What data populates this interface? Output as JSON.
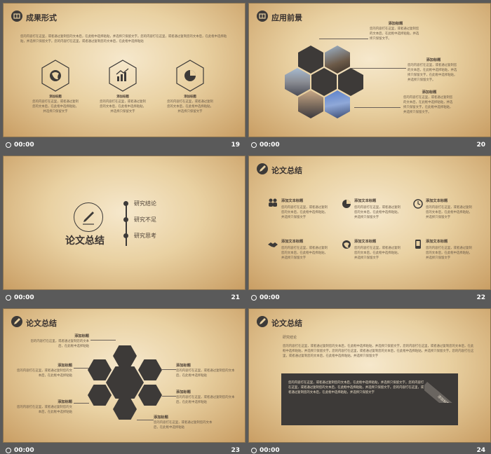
{
  "footer_time": "00:00",
  "slides": [
    {
      "number": "19",
      "title": "成果形式",
      "intro": "您的内容打在这里，或者通过复制您的文本后，在此框中选择粘贴，并选择只保留文字。您的内容打在这里，或者通过复制您的文本后，在此框中选择粘贴，并选择只保留文字。您的内容打在这里，或者通过复制您的文本后，在此框中选择粘贴",
      "items": [
        {
          "icon": "globe-icon",
          "label": "添加标题",
          "text": "您的内容打在这里，或者通过复制您的文本后，在此框中选择粘贴，并选择只保留文字"
        },
        {
          "icon": "bar-chart-icon",
          "label": "添加标题",
          "text": "您的内容打在这里，或者通过复制您的文本后，在此框中选择粘贴，并选择只保留文字"
        },
        {
          "icon": "pie-chart-icon",
          "label": "添加标题",
          "text": "您的内容打在这里，或者通过复制您的文本后，在此框中选择粘贴，并选择只保留文字"
        }
      ]
    },
    {
      "number": "20",
      "title": "应用前景",
      "callouts": [
        {
          "label": "添加标题",
          "text": "您的内容打在这里，或者通过复制您的文本后，在此框中选择粘贴，并选择只保留文字。"
        },
        {
          "label": "添加标题",
          "text": "您的内容打在这里，或者通过复制您的文本后，在此框中选择粘贴，并选择只保留文字，在此框中选择粘贴，并选择只保留文字。"
        },
        {
          "label": "添加标题",
          "text": "您的内容打在这里，或者通过复制您的文本后，在此框中选择粘贴，并选择只保留文字，在此框中选择粘贴，并选择只保留文字。"
        }
      ]
    },
    {
      "number": "21",
      "title": "论文总结",
      "items": [
        "研究结论",
        "研究不足",
        "研究思考"
      ]
    },
    {
      "number": "22",
      "title": "论文总结",
      "items": [
        {
          "icon": "people-icon",
          "label": "添加文本标题",
          "text": "您的内容打在这里，或者通过复制您的文本后，在此框中选择粘贴，并选择只保留文字"
        },
        {
          "icon": "pie-icon",
          "label": "添加文本标题",
          "text": "您的内容打在这里，或者通过复制您的文本后，在此框中选择粘贴，并选择只保留文字"
        },
        {
          "icon": "clock-icon",
          "label": "添加文本标题",
          "text": "您的内容打在这里，或者通过复制您的文本后，在此框中选择粘贴，并选择只保留文字"
        },
        {
          "icon": "handshake-icon",
          "label": "添加文本标题",
          "text": "您的内容打在这里，或者通过复制您的文本后，在此框中选择粘贴，并选择只保留文字"
        },
        {
          "icon": "globe-icon",
          "label": "添加文本标题",
          "text": "您的内容打在这里，或者通过复制您的文本后，在此框中选择粘贴，并选择只保留文字"
        },
        {
          "icon": "phone-icon",
          "label": "添加文本标题",
          "text": "您的内容打在这里，或者通过复制您的文本后，在此框中选择粘贴，并选择只保留文字"
        }
      ]
    },
    {
      "number": "23",
      "title": "论文总结",
      "labels": [
        {
          "label": "添加标题",
          "text": "您的内容打在这里，或者通过复制您的文本后，在此框中选择粘贴"
        },
        {
          "label": "添加标题",
          "text": "您的内容打在这里，或者通过复制您的文本后，在此框中选择粘贴"
        },
        {
          "label": "添加标题",
          "text": "您的内容打在这里，或者通过复制您的文本后，在此框中选择粘贴"
        },
        {
          "label": "添加标题",
          "text": "您的内容打在这里，或者通过复制您的文本后，在此框中选择粘贴"
        },
        {
          "label": "添加标题",
          "text": "您的内容打在这里，或者通过复制您的文本后，在此框中选择粘贴"
        },
        {
          "label": "添加标题",
          "text": "您的内容打在这里，或者通过复制您的文本后，在此框中选择粘贴"
        }
      ]
    },
    {
      "number": "24",
      "title": "论文总结",
      "subtitle": "研究结论",
      "body": "您的内容打在这里，或者通过复制您的文本后，在此框中选择粘贴，并选择只保留文字。您的内容打在这里，或者通过复制您的文本后，在此框中选择粘贴，并选择只保留文字。您的内容打在这里，或者通过复制您的文本后，在此框中选择粘贴，并选择只保留文字。您的内容打在这里，或者通过复制您的文本后，在此框中选择粘贴，并选择只保留文字",
      "box_text": "您的内容打在这里，或者通过复制您的文本后，在此框中选择粘贴，并选择只保留文字。您的内容打在这里，或者通过复制您的文本后，在此框中选择粘贴，并选择只保留文字。您的内容打在这里，或者通过复制您的文本后，在此框中选择粘贴，并选择只保留文字",
      "tag": "添加标题"
    }
  ]
}
